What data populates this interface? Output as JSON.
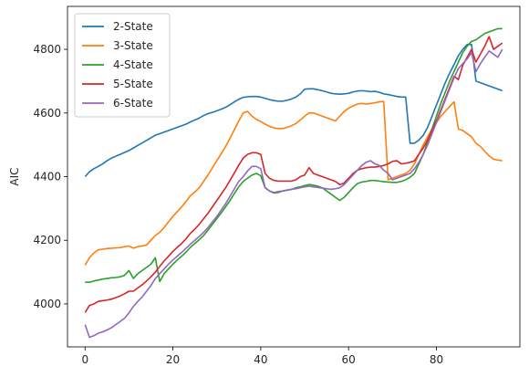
{
  "chart_data": {
    "type": "line",
    "title": "",
    "xlabel": "",
    "ylabel": "AIC",
    "xlim": [
      -4,
      99
    ],
    "ylim": [
      3865,
      4935
    ],
    "xticks": [
      0,
      20,
      40,
      60,
      80
    ],
    "yticks": [
      4000,
      4200,
      4400,
      4600,
      4800
    ],
    "grid": false,
    "legend_position": "top-left",
    "x": [
      0,
      1,
      2,
      3,
      4,
      5,
      6,
      7,
      8,
      9,
      10,
      11,
      12,
      13,
      14,
      15,
      16,
      17,
      18,
      19,
      20,
      21,
      22,
      23,
      24,
      25,
      26,
      27,
      28,
      29,
      30,
      31,
      32,
      33,
      34,
      35,
      36,
      37,
      38,
      39,
      40,
      41,
      42,
      43,
      44,
      45,
      46,
      47,
      48,
      49,
      50,
      51,
      52,
      53,
      54,
      55,
      56,
      57,
      58,
      59,
      60,
      61,
      62,
      63,
      64,
      65,
      66,
      67,
      68,
      69,
      70,
      71,
      72,
      73,
      74,
      75,
      76,
      77,
      78,
      79,
      80,
      81,
      82,
      83,
      84,
      85,
      86,
      87,
      88,
      89,
      90,
      91,
      92,
      93,
      94,
      95
    ],
    "series": [
      {
        "name": "2-State",
        "color": "#1f77b4",
        "values": [
          4400,
          4415,
          4425,
          4432,
          4440,
          4450,
          4458,
          4464,
          4470,
          4476,
          4482,
          4490,
          4498,
          4506,
          4514,
          4522,
          4530,
          4535,
          4540,
          4545,
          4550,
          4555,
          4560,
          4565,
          4572,
          4578,
          4584,
          4592,
          4598,
          4602,
          4607,
          4612,
          4618,
          4626,
          4635,
          4643,
          4649,
          4651,
          4652,
          4652,
          4650,
          4646,
          4642,
          4639,
          4637,
          4637,
          4640,
          4644,
          4650,
          4660,
          4675,
          4676,
          4676,
          4673,
          4670,
          4666,
          4662,
          4660,
          4659,
          4660,
          4662,
          4666,
          4669,
          4670,
          4669,
          4667,
          4668,
          4665,
          4660,
          4658,
          4655,
          4652,
          4650,
          4650,
          4505,
          4505,
          4515,
          4530,
          4555,
          4590,
          4625,
          4660,
          4695,
          4725,
          4752,
          4780,
          4800,
          4815,
          4815,
          4700,
          4695,
          4690,
          4685,
          4680,
          4675,
          4670
        ]
      },
      {
        "name": "3-State",
        "color": "#ff7f0e",
        "values": [
          4122,
          4145,
          4160,
          4170,
          4172,
          4174,
          4175,
          4176,
          4177,
          4180,
          4182,
          4175,
          4180,
          4182,
          4185,
          4200,
          4215,
          4225,
          4240,
          4258,
          4275,
          4290,
          4305,
          4322,
          4340,
          4352,
          4365,
          4385,
          4405,
          4428,
          4450,
          4472,
          4495,
          4520,
          4548,
          4575,
          4600,
          4605,
          4590,
          4580,
          4573,
          4565,
          4558,
          4553,
          4551,
          4551,
          4555,
          4560,
          4567,
          4578,
          4590,
          4600,
          4600,
          4595,
          4590,
          4585,
          4580,
          4575,
          4590,
          4605,
          4615,
          4622,
          4628,
          4630,
          4628,
          4630,
          4632,
          4635,
          4636,
          4390,
          4395,
          4400,
          4405,
          4410,
          4420,
          4440,
          4470,
          4500,
          4525,
          4550,
          4570,
          4590,
          4605,
          4620,
          4635,
          4550,
          4545,
          4535,
          4525,
          4505,
          4495,
          4480,
          4465,
          4455,
          4452,
          4450
        ]
      },
      {
        "name": "4-State",
        "color": "#2ca02c",
        "values": [
          4068,
          4068,
          4072,
          4075,
          4078,
          4080,
          4082,
          4083,
          4085,
          4090,
          4105,
          4080,
          4095,
          4105,
          4115,
          4125,
          4145,
          4070,
          4095,
          4110,
          4125,
          4138,
          4150,
          4163,
          4178,
          4190,
          4202,
          4215,
          4232,
          4250,
          4268,
          4286,
          4305,
          4325,
          4347,
          4368,
          4385,
          4395,
          4405,
          4410,
          4403,
          4365,
          4355,
          4350,
          4353,
          4355,
          4357,
          4360,
          4365,
          4368,
          4372,
          4375,
          4373,
          4370,
          4365,
          4355,
          4345,
          4335,
          4325,
          4335,
          4350,
          4365,
          4378,
          4383,
          4385,
          4388,
          4388,
          4386,
          4384,
          4383,
          4382,
          4382,
          4385,
          4390,
          4398,
          4410,
          4440,
          4470,
          4510,
          4550,
          4590,
          4630,
          4665,
          4700,
          4730,
          4760,
          4790,
          4810,
          4825,
          4830,
          4840,
          4850,
          4855,
          4860,
          4865,
          4865
        ]
      },
      {
        "name": "5-State",
        "color": "#d62728",
        "values": [
          3973,
          3995,
          4000,
          4008,
          4010,
          4012,
          4015,
          4020,
          4025,
          4032,
          4040,
          4040,
          4050,
          4060,
          4072,
          4085,
          4100,
          4118,
          4135,
          4150,
          4165,
          4178,
          4190,
          4205,
          4222,
          4235,
          4250,
          4268,
          4285,
          4305,
          4325,
          4345,
          4365,
          4388,
          4412,
          4436,
          4458,
          4470,
          4475,
          4475,
          4470,
          4410,
          4395,
          4388,
          4386,
          4386,
          4386,
          4386,
          4390,
          4400,
          4405,
          4428,
          4410,
          4405,
          4400,
          4395,
          4390,
          4385,
          4375,
          4380,
          4395,
          4410,
          4420,
          4425,
          4428,
          4430,
          4430,
          4432,
          4435,
          4440,
          4448,
          4450,
          4440,
          4442,
          4445,
          4450,
          4470,
          4490,
          4515,
          4545,
          4575,
          4610,
          4645,
          4680,
          4715,
          4705,
          4750,
          4775,
          4800,
          4760,
          4785,
          4810,
          4840,
          4800,
          4810,
          4820
        ]
      },
      {
        "name": "6-State",
        "color": "#9467bd",
        "values": [
          3935,
          3895,
          3900,
          3908,
          3912,
          3918,
          3925,
          3935,
          3945,
          3955,
          3972,
          3992,
          4008,
          4022,
          4040,
          4058,
          4080,
          4095,
          4110,
          4125,
          4138,
          4150,
          4162,
          4175,
          4188,
          4200,
          4212,
          4225,
          4240,
          4258,
          4275,
          4295,
          4315,
          4338,
          4362,
          4385,
          4400,
          4418,
          4432,
          4432,
          4425,
          4365,
          4355,
          4348,
          4350,
          4355,
          4358,
          4360,
          4362,
          4365,
          4368,
          4370,
          4368,
          4366,
          4364,
          4362,
          4360,
          4362,
          4365,
          4375,
          4390,
          4405,
          4420,
          4435,
          4445,
          4450,
          4440,
          4435,
          4420,
          4410,
          4390,
          4395,
          4400,
          4405,
          4410,
          4425,
          4445,
          4470,
          4500,
          4535,
          4570,
          4605,
          4640,
          4675,
          4710,
          4740,
          4755,
          4770,
          4790,
          4730,
          4755,
          4775,
          4795,
          4785,
          4775,
          4800
        ]
      }
    ]
  }
}
